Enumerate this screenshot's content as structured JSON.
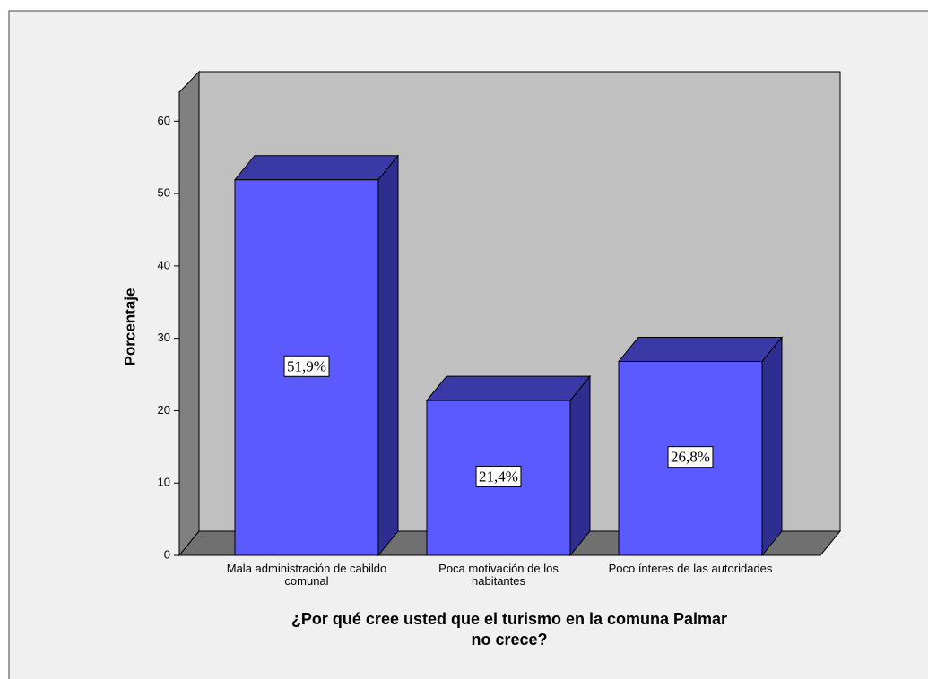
{
  "chart_data": {
    "type": "bar3d",
    "ylabel": "Porcentaje",
    "xlabel": "¿Por qué cree usted que el turismo en la comuna Palmar no crece?",
    "categories": [
      "Mala administración de cabildo comunal",
      "Poca motivación de los habitantes",
      "Poco ínteres de las autoridades"
    ],
    "values": [
      51.9,
      21.4,
      26.8
    ],
    "value_labels": [
      "51,9%",
      "21,4%",
      "26,8%"
    ],
    "color": "#5a5aff",
    "ylim": [
      0,
      64
    ],
    "yticks": [
      0,
      10,
      20,
      30,
      40,
      50,
      60
    ]
  }
}
